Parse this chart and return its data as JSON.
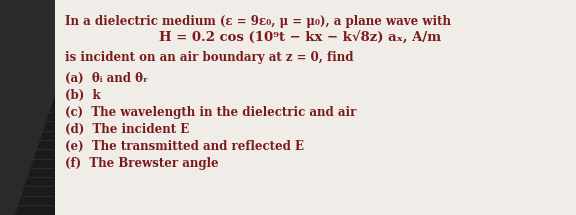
{
  "bg_color": "#e8e5e0",
  "text_color": "#7a1a1a",
  "fig_width": 5.76,
  "fig_height": 2.15,
  "dpi": 100,
  "line1": "In a dielectric medium (ε = 9ε₀, μ = μ₀), a plane wave with",
  "line2": "H = 0.2 cos (10⁹t − kx − k√8z) aₓ, A/m",
  "line3": "is incident on an air boundary at z = 0, find",
  "line4a": "(a)  θᵢ and θᵣ",
  "line4b": "(b)  k",
  "line4c": "(c)  The wavelength in the dielectric and air",
  "line4d": "(d)  The incident E",
  "line4e": "(e)  The transmitted and reflected E",
  "line4f": "(f)  The Brewster angle",
  "font_size_main": 8.5,
  "font_size_eq": 9.5,
  "font_family": "DejaVu Serif"
}
